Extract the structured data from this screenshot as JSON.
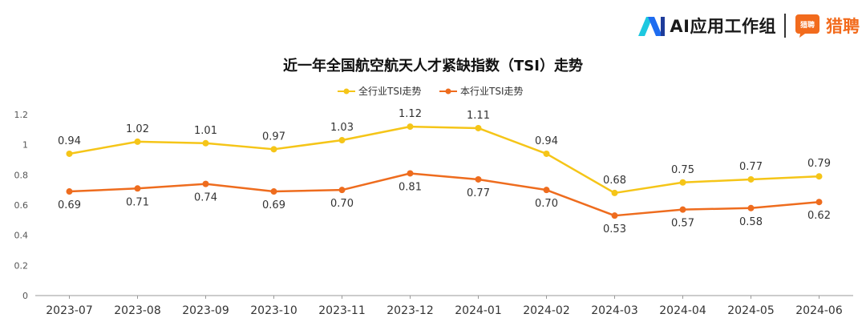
{
  "brand": {
    "ai_label": "AI应用工作组",
    "liepin_label": "猎聘",
    "liepin_icon_text": "猎聘"
  },
  "colors": {
    "series_all": "#f5c518",
    "series_industry": "#ee6c1e",
    "axis": "#999999",
    "liepin": "#f26b1d",
    "ai_logo": "#1e9bf0"
  },
  "chart_data": {
    "type": "line",
    "title": "近一年全国航空航天人才紧缺指数（TSI）走势",
    "categories": [
      "2023-07",
      "2023-08",
      "2023-09",
      "2023-10",
      "2023-11",
      "2023-12",
      "2024-01",
      "2024-02",
      "2024-03",
      "2024-04",
      "2024-05",
      "2024-06"
    ],
    "series": [
      {
        "name": "全行业TSI走势",
        "values": [
          0.94,
          1.02,
          1.01,
          0.97,
          1.03,
          1.12,
          1.11,
          0.94,
          0.68,
          0.75,
          0.77,
          0.79
        ],
        "labels": [
          "0.94",
          "1.02",
          "1.01",
          "0.97",
          "1.03",
          "1.12",
          "1.11",
          "0.94",
          "0.68",
          "0.75",
          "0.77",
          "0.79"
        ],
        "color": "#f5c518",
        "label_position": "above"
      },
      {
        "name": "本行业TSI走势",
        "values": [
          0.69,
          0.71,
          0.74,
          0.69,
          0.7,
          0.81,
          0.77,
          0.7,
          0.53,
          0.57,
          0.58,
          0.62
        ],
        "labels": [
          "0.69",
          "0.71",
          "0.74",
          "0.69",
          "0.70",
          "0.81",
          "0.77",
          "0.70",
          "0.53",
          "0.57",
          "0.58",
          "0.62"
        ],
        "color": "#ee6c1e",
        "label_position": "below"
      }
    ],
    "ylim": [
      0,
      1.2
    ],
    "yticks": [
      "0",
      "0.2",
      "0.4",
      "0.6",
      "0.8",
      "1",
      "1.2"
    ],
    "grid": false,
    "legend": "top-center"
  }
}
